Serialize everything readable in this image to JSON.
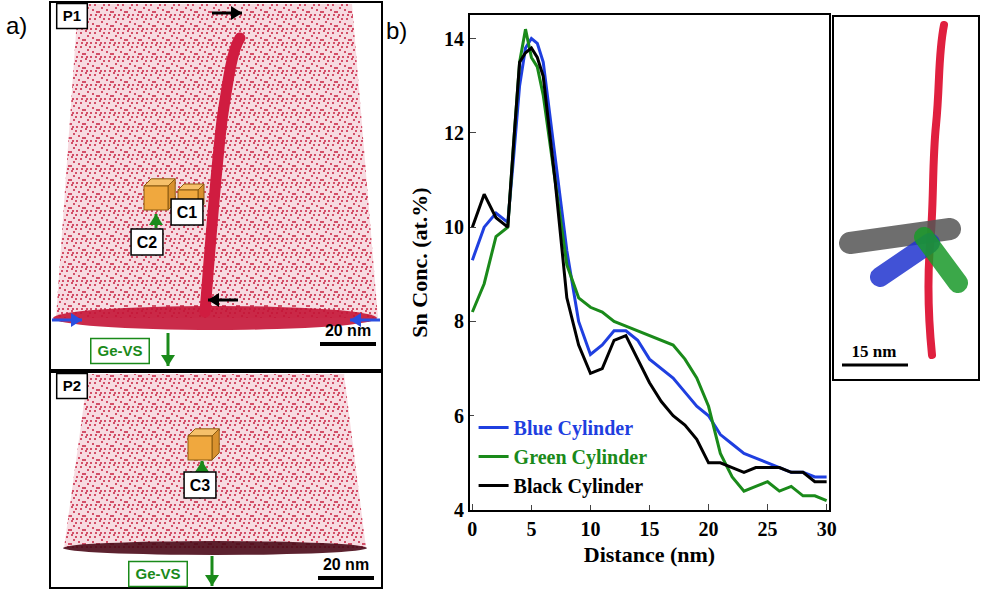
{
  "chart_data": {
    "type": "line",
    "xlabel": "Distance (nm)",
    "ylabel": "Sn Conc. (at.%)",
    "x": [
      0,
      1,
      2,
      3,
      3.5,
      4,
      4.5,
      5,
      5.5,
      6,
      7,
      8,
      9,
      10,
      11,
      12,
      13,
      14,
      15,
      16,
      17,
      18,
      19,
      20,
      21,
      22,
      23,
      24,
      25,
      26,
      27,
      28,
      29,
      30
    ],
    "series": [
      {
        "name": "Blue Cylinder",
        "color": "#1f3fe0",
        "values": [
          9.3,
          10.0,
          10.3,
          10.1,
          11.5,
          13.0,
          13.8,
          14.0,
          13.9,
          13.5,
          11.5,
          9.5,
          8.0,
          7.3,
          7.5,
          7.8,
          7.8,
          7.6,
          7.2,
          7.0,
          6.8,
          6.5,
          6.2,
          6.0,
          5.6,
          5.4,
          5.2,
          5.1,
          5.0,
          4.9,
          4.8,
          4.8,
          4.7,
          4.7
        ]
      },
      {
        "name": "Green Cylinder",
        "color": "#1a8a1a",
        "values": [
          8.2,
          8.8,
          9.8,
          10.0,
          11.8,
          13.5,
          14.2,
          13.6,
          13.4,
          12.8,
          11.0,
          9.2,
          8.5,
          8.3,
          8.2,
          8.0,
          7.9,
          7.8,
          7.7,
          7.6,
          7.5,
          7.2,
          6.8,
          6.2,
          5.2,
          4.7,
          4.4,
          4.5,
          4.6,
          4.4,
          4.5,
          4.3,
          4.3,
          4.2
        ]
      },
      {
        "name": "Black Cylinder",
        "color": "#000000",
        "values": [
          10.0,
          10.7,
          10.2,
          10.0,
          11.8,
          13.5,
          13.7,
          13.8,
          13.6,
          13.2,
          11.0,
          8.5,
          7.5,
          6.9,
          7.0,
          7.6,
          7.7,
          7.2,
          6.7,
          6.3,
          6.0,
          5.8,
          5.5,
          5.0,
          5.0,
          4.9,
          4.8,
          4.9,
          4.9,
          4.9,
          4.8,
          4.8,
          4.6,
          4.6
        ]
      }
    ],
    "xlim": [
      -0.2,
      30.2
    ],
    "xticks": [
      0,
      5,
      10,
      15,
      20,
      25,
      30
    ],
    "ylim": [
      4,
      14.5
    ],
    "yticks": [
      4,
      6,
      8,
      10,
      12,
      14
    ],
    "grid": false,
    "legend": "lower left"
  },
  "figure": {
    "panel_a": {
      "label": "a)",
      "views": [
        {
          "name": "P1",
          "cubes": [
            "C1",
            "C2"
          ],
          "substrate": "Ge-VS",
          "scale_bar": "20 nm"
        },
        {
          "name": "P2",
          "cubes": [
            "C3"
          ],
          "substrate": "Ge-VS",
          "scale_bar": "20 nm"
        }
      ]
    },
    "panel_b": {
      "label": "b)",
      "inset_scale_bar": "15 nm"
    }
  }
}
